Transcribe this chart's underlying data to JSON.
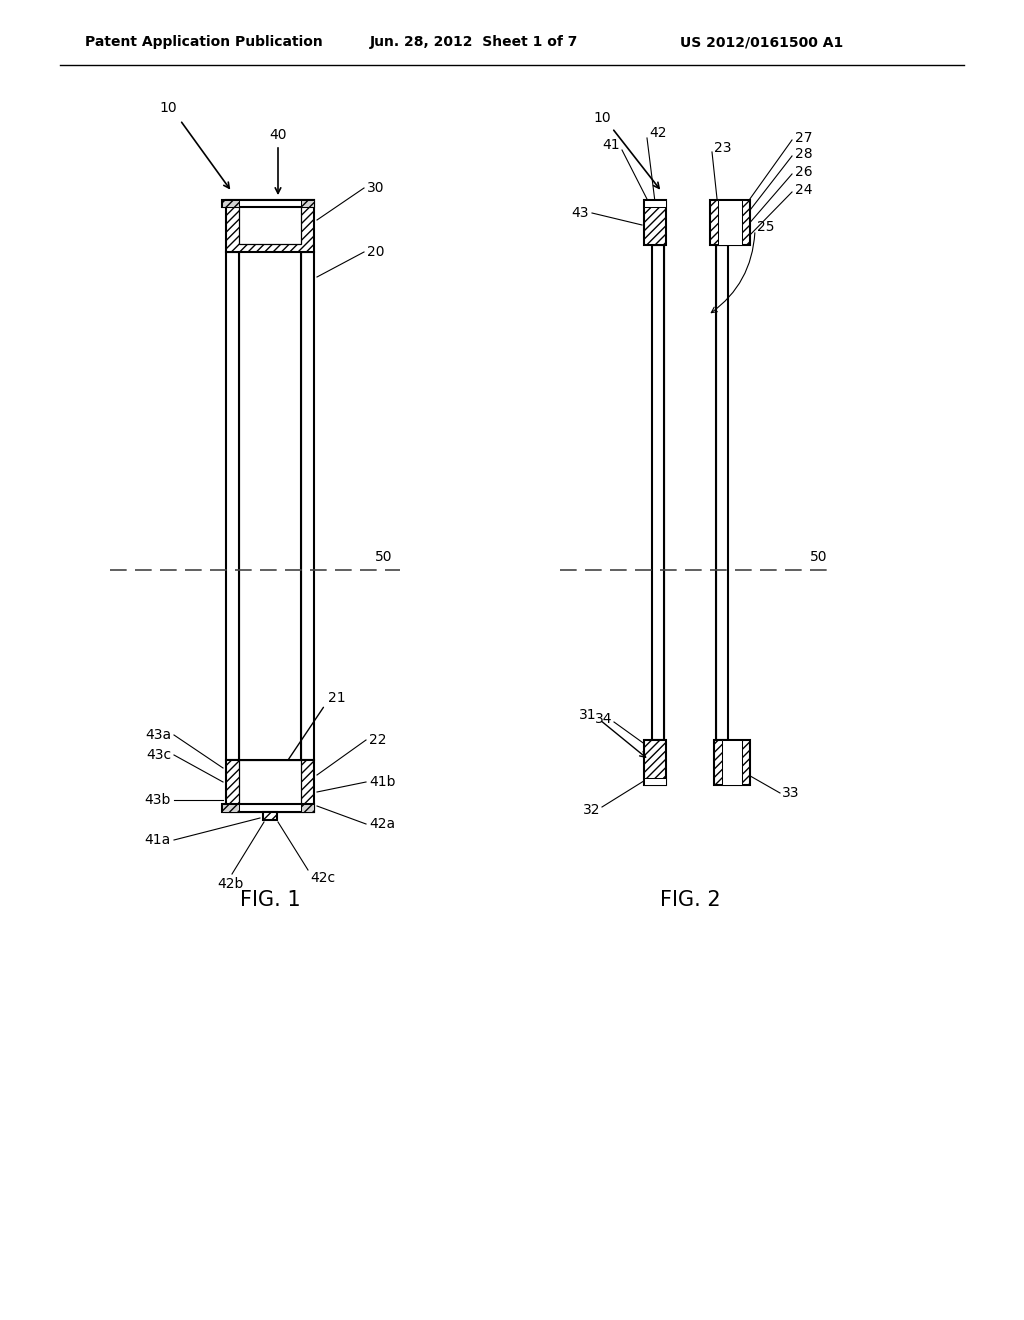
{
  "bg_color": "#ffffff",
  "header_left": "Patent Application Publication",
  "header_center": "Jun. 28, 2012  Sheet 1 of 7",
  "header_right": "US 2012/0161500 A1",
  "fig1_label": "FIG. 1",
  "fig2_label": "FIG. 2",
  "line_color": "#000000",
  "hatch_color": "#000000",
  "centerline_color": "#555555"
}
